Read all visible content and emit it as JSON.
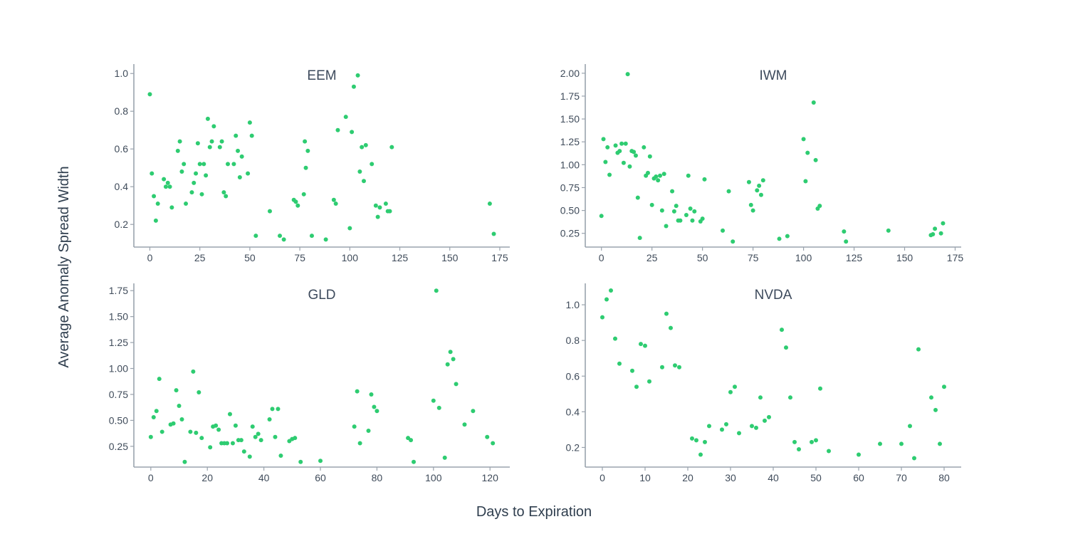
{
  "chart_data": {
    "type": "scatter",
    "xlabel": "Days to Expiration",
    "ylabel": "Average Anomaly Spread Width",
    "grid": false,
    "point_color": "#2ecc71",
    "axis_color": "#9aa3ad",
    "panels": [
      {
        "title": "EEM",
        "xlim": [
          -8,
          180
        ],
        "ylim": [
          0.08,
          1.05
        ],
        "xticks": [
          0,
          25,
          50,
          75,
          100,
          125,
          150,
          175
        ],
        "yticks": [
          0.2,
          0.4,
          0.6,
          0.8,
          1.0
        ],
        "ytick_labels": [
          "0.2",
          "0.4",
          "0.6",
          "0.8",
          "1.0"
        ],
        "points": [
          [
            0,
            0.89
          ],
          [
            1,
            0.47
          ],
          [
            2,
            0.35
          ],
          [
            3,
            0.22
          ],
          [
            4,
            0.31
          ],
          [
            7,
            0.44
          ],
          [
            8,
            0.4
          ],
          [
            9,
            0.42
          ],
          [
            10,
            0.4
          ],
          [
            11,
            0.29
          ],
          [
            14,
            0.59
          ],
          [
            15,
            0.64
          ],
          [
            16,
            0.48
          ],
          [
            17,
            0.52
          ],
          [
            18,
            0.31
          ],
          [
            21,
            0.37
          ],
          [
            22,
            0.42
          ],
          [
            23,
            0.47
          ],
          [
            24,
            0.63
          ],
          [
            25,
            0.52
          ],
          [
            26,
            0.36
          ],
          [
            27,
            0.52
          ],
          [
            28,
            0.46
          ],
          [
            29,
            0.76
          ],
          [
            30,
            0.61
          ],
          [
            31,
            0.64
          ],
          [
            32,
            0.72
          ],
          [
            35,
            0.61
          ],
          [
            36,
            0.64
          ],
          [
            37,
            0.37
          ],
          [
            38,
            0.35
          ],
          [
            39,
            0.52
          ],
          [
            42,
            0.52
          ],
          [
            43,
            0.67
          ],
          [
            44,
            0.59
          ],
          [
            45,
            0.45
          ],
          [
            46,
            0.56
          ],
          [
            49,
            0.47
          ],
          [
            50,
            0.74
          ],
          [
            51,
            0.67
          ],
          [
            53,
            0.14
          ],
          [
            60,
            0.27
          ],
          [
            65,
            0.14
          ],
          [
            67,
            0.12
          ],
          [
            72,
            0.33
          ],
          [
            73,
            0.32
          ],
          [
            74,
            0.3
          ],
          [
            77,
            0.36
          ],
          [
            77.5,
            0.64
          ],
          [
            78,
            0.5
          ],
          [
            79,
            0.59
          ],
          [
            81,
            0.14
          ],
          [
            88,
            0.12
          ],
          [
            92,
            0.33
          ],
          [
            93,
            0.31
          ],
          [
            94,
            0.7
          ],
          [
            98,
            0.77
          ],
          [
            100,
            0.18
          ],
          [
            101,
            0.69
          ],
          [
            102,
            0.93
          ],
          [
            104,
            0.99
          ],
          [
            105,
            0.48
          ],
          [
            106,
            0.61
          ],
          [
            107,
            0.43
          ],
          [
            108,
            0.62
          ],
          [
            111,
            0.52
          ],
          [
            113,
            0.3
          ],
          [
            114,
            0.24
          ],
          [
            115,
            0.29
          ],
          [
            118,
            0.31
          ],
          [
            119,
            0.27
          ],
          [
            120,
            0.27
          ],
          [
            121,
            0.61
          ],
          [
            170,
            0.31
          ],
          [
            172,
            0.15
          ]
        ]
      },
      {
        "title": "IWM",
        "xlim": [
          -8,
          178
        ],
        "ylim": [
          0.1,
          2.1
        ],
        "xticks": [
          0,
          25,
          50,
          75,
          100,
          125,
          150,
          175
        ],
        "yticks": [
          0.25,
          0.5,
          0.75,
          1.0,
          1.25,
          1.5,
          1.75,
          2.0
        ],
        "ytick_labels": [
          "0.25",
          "0.50",
          "0.75",
          "1.00",
          "1.25",
          "1.50",
          "1.75",
          "2.00"
        ],
        "points": [
          [
            0,
            0.44
          ],
          [
            1,
            1.28
          ],
          [
            2,
            1.03
          ],
          [
            3,
            1.19
          ],
          [
            4,
            0.89
          ],
          [
            7,
            1.21
          ],
          [
            8,
            1.13
          ],
          [
            9,
            1.15
          ],
          [
            10,
            1.23
          ],
          [
            11,
            1.02
          ],
          [
            12,
            1.23
          ],
          [
            13,
            1.99
          ],
          [
            14,
            0.98
          ],
          [
            15,
            1.15
          ],
          [
            16,
            1.14
          ],
          [
            17,
            1.1
          ],
          [
            18,
            0.64
          ],
          [
            19,
            0.2
          ],
          [
            21,
            1.19
          ],
          [
            22,
            0.88
          ],
          [
            23,
            0.91
          ],
          [
            24,
            1.09
          ],
          [
            25,
            0.56
          ],
          [
            26,
            0.85
          ],
          [
            27,
            0.87
          ],
          [
            28,
            0.83
          ],
          [
            29,
            0.88
          ],
          [
            30,
            0.5
          ],
          [
            31,
            0.9
          ],
          [
            32,
            0.33
          ],
          [
            35,
            0.71
          ],
          [
            36,
            0.49
          ],
          [
            37,
            0.55
          ],
          [
            38,
            0.39
          ],
          [
            39,
            0.39
          ],
          [
            42,
            0.45
          ],
          [
            43,
            0.88
          ],
          [
            44,
            0.52
          ],
          [
            45,
            0.39
          ],
          [
            46,
            0.49
          ],
          [
            49,
            0.38
          ],
          [
            50,
            0.41
          ],
          [
            51,
            0.84
          ],
          [
            60,
            0.28
          ],
          [
            63,
            0.71
          ],
          [
            65,
            0.16
          ],
          [
            73,
            0.81
          ],
          [
            74,
            0.56
          ],
          [
            75,
            0.5
          ],
          [
            77,
            0.72
          ],
          [
            78,
            0.77
          ],
          [
            79,
            0.67
          ],
          [
            80,
            0.83
          ],
          [
            88,
            0.19
          ],
          [
            92,
            0.22
          ],
          [
            100,
            1.28
          ],
          [
            101,
            0.82
          ],
          [
            102,
            1.13
          ],
          [
            105,
            1.68
          ],
          [
            106,
            1.05
          ],
          [
            107,
            0.52
          ],
          [
            108,
            0.55
          ],
          [
            120,
            0.27
          ],
          [
            121,
            0.16
          ],
          [
            142,
            0.28
          ],
          [
            163,
            0.23
          ],
          [
            164,
            0.24
          ],
          [
            165,
            0.3
          ],
          [
            168,
            0.25
          ],
          [
            169,
            0.36
          ]
        ]
      },
      {
        "title": "GLD",
        "xlim": [
          -6,
          127
        ],
        "ylim": [
          0.05,
          1.82
        ],
        "xticks": [
          0,
          20,
          40,
          60,
          80,
          100,
          120
        ],
        "yticks": [
          0.25,
          0.5,
          0.75,
          1.0,
          1.25,
          1.5,
          1.75
        ],
        "ytick_labels": [
          "0.25",
          "0.50",
          "0.75",
          "1.00",
          "1.25",
          "1.50",
          "1.75"
        ],
        "points": [
          [
            0,
            0.34
          ],
          [
            1,
            0.53
          ],
          [
            2,
            0.59
          ],
          [
            3,
            0.9
          ],
          [
            4,
            0.39
          ],
          [
            7,
            0.46
          ],
          [
            8,
            0.47
          ],
          [
            9,
            0.79
          ],
          [
            10,
            0.64
          ],
          [
            11,
            0.51
          ],
          [
            12,
            0.1
          ],
          [
            14,
            0.39
          ],
          [
            15,
            0.97
          ],
          [
            16,
            0.38
          ],
          [
            17,
            0.77
          ],
          [
            18,
            0.33
          ],
          [
            21,
            0.24
          ],
          [
            22,
            0.44
          ],
          [
            23,
            0.45
          ],
          [
            24,
            0.41
          ],
          [
            25,
            0.28
          ],
          [
            26,
            0.28
          ],
          [
            27,
            0.28
          ],
          [
            28,
            0.56
          ],
          [
            29,
            0.28
          ],
          [
            30,
            0.45
          ],
          [
            31,
            0.31
          ],
          [
            32,
            0.31
          ],
          [
            33,
            0.2
          ],
          [
            35,
            0.15
          ],
          [
            36,
            0.44
          ],
          [
            37,
            0.34
          ],
          [
            38,
            0.37
          ],
          [
            39,
            0.31
          ],
          [
            42,
            0.51
          ],
          [
            43,
            0.61
          ],
          [
            44,
            0.34
          ],
          [
            45,
            0.61
          ],
          [
            46,
            0.16
          ],
          [
            49,
            0.3
          ],
          [
            50,
            0.32
          ],
          [
            51,
            0.33
          ],
          [
            53,
            0.1
          ],
          [
            60,
            0.11
          ],
          [
            72,
            0.44
          ],
          [
            73,
            0.78
          ],
          [
            74,
            0.28
          ],
          [
            77,
            0.4
          ],
          [
            78,
            0.75
          ],
          [
            79,
            0.63
          ],
          [
            80,
            0.59
          ],
          [
            91,
            0.33
          ],
          [
            92,
            0.31
          ],
          [
            93,
            0.1
          ],
          [
            100,
            0.69
          ],
          [
            101,
            1.75
          ],
          [
            102,
            0.62
          ],
          [
            104,
            0.14
          ],
          [
            105,
            1.04
          ],
          [
            106,
            1.16
          ],
          [
            107,
            1.09
          ],
          [
            108,
            0.85
          ],
          [
            111,
            0.46
          ],
          [
            114,
            0.59
          ],
          [
            119,
            0.34
          ],
          [
            121,
            0.28
          ]
        ]
      },
      {
        "title": "NVDA",
        "xlim": [
          -4,
          84
        ],
        "ylim": [
          0.09,
          1.12
        ],
        "xticks": [
          0,
          10,
          20,
          30,
          40,
          50,
          60,
          70,
          80
        ],
        "yticks": [
          0.2,
          0.4,
          0.6,
          0.8,
          1.0
        ],
        "ytick_labels": [
          "0.2",
          "0.4",
          "0.6",
          "0.8",
          "1.0"
        ],
        "points": [
          [
            0,
            0.93
          ],
          [
            1,
            1.03
          ],
          [
            2,
            1.08
          ],
          [
            3,
            0.81
          ],
          [
            4,
            0.67
          ],
          [
            7,
            0.63
          ],
          [
            8,
            0.54
          ],
          [
            9,
            0.78
          ],
          [
            10,
            0.77
          ],
          [
            11,
            0.57
          ],
          [
            14,
            0.65
          ],
          [
            15,
            0.95
          ],
          [
            16,
            0.87
          ],
          [
            17,
            0.66
          ],
          [
            18,
            0.65
          ],
          [
            21,
            0.25
          ],
          [
            22,
            0.24
          ],
          [
            23,
            0.16
          ],
          [
            24,
            0.23
          ],
          [
            25,
            0.32
          ],
          [
            28,
            0.3
          ],
          [
            29,
            0.33
          ],
          [
            30,
            0.51
          ],
          [
            31,
            0.54
          ],
          [
            32,
            0.28
          ],
          [
            35,
            0.32
          ],
          [
            36,
            0.31
          ],
          [
            37,
            0.48
          ],
          [
            38,
            0.35
          ],
          [
            39,
            0.37
          ],
          [
            42,
            0.86
          ],
          [
            43,
            0.76
          ],
          [
            44,
            0.48
          ],
          [
            45,
            0.23
          ],
          [
            46,
            0.19
          ],
          [
            49,
            0.23
          ],
          [
            50,
            0.24
          ],
          [
            51,
            0.53
          ],
          [
            53,
            0.18
          ],
          [
            60,
            0.16
          ],
          [
            65,
            0.22
          ],
          [
            70,
            0.22
          ],
          [
            72,
            0.32
          ],
          [
            73,
            0.14
          ],
          [
            74,
            0.75
          ],
          [
            77,
            0.48
          ],
          [
            78,
            0.41
          ],
          [
            79,
            0.22
          ],
          [
            80,
            0.54
          ]
        ]
      }
    ]
  }
}
